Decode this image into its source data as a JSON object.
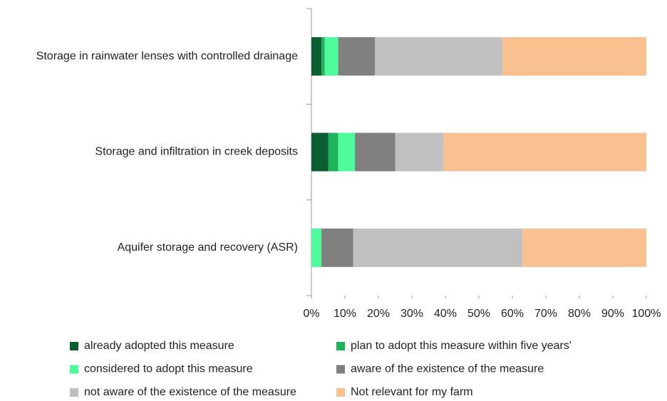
{
  "chart_data": {
    "type": "stacked_barh",
    "categories": [
      "Storage in rainwater lenses with controlled drainage",
      "Storage and infiltration in creek deposits",
      "Aquifer storage and recovery (ASR)"
    ],
    "series": [
      {
        "name": "already adopted this measure",
        "color": "#0b5e2f",
        "values": [
          3,
          5,
          0
        ]
      },
      {
        "name": "plan to adopt this measure within five years'",
        "color": "#1fb35c",
        "values": [
          1,
          3,
          0
        ]
      },
      {
        "name": "considered to adopt this measure",
        "color": "#4dfa9c",
        "values": [
          4,
          5,
          3
        ]
      },
      {
        "name": "aware of the existence of the measure",
        "color": "#808080",
        "values": [
          11,
          12,
          9.5
        ]
      },
      {
        "name": "not aware of the existence of the measure",
        "color": "#c0c0c0",
        "values": [
          38,
          14.5,
          50.5
        ]
      },
      {
        "name": "Not relevant for my farm",
        "color": "#f9c190",
        "values": [
          43,
          60.5,
          37
        ]
      }
    ],
    "xlim": [
      0,
      100
    ],
    "xticks": [
      {
        "value": 0,
        "label": "0%"
      },
      {
        "value": 10,
        "label": "10%"
      },
      {
        "value": 20,
        "label": "20%"
      },
      {
        "value": 30,
        "label": "30%"
      },
      {
        "value": 40,
        "label": "40%"
      },
      {
        "value": 50,
        "label": "50%"
      },
      {
        "value": 60,
        "label": "60%"
      },
      {
        "value": 70,
        "label": "70%"
      },
      {
        "value": 80,
        "label": "80%"
      },
      {
        "value": 90,
        "label": "90%"
      },
      {
        "value": 100,
        "label": "100%"
      }
    ],
    "legend": "bottom"
  }
}
